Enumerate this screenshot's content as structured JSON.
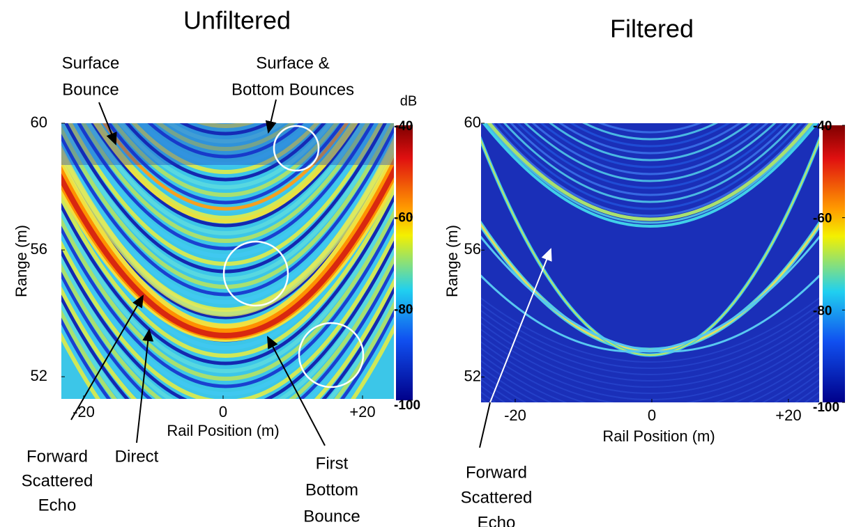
{
  "chart_data": [
    {
      "type": "heatmap",
      "title": "Unfiltered",
      "xlabel": "Rail Position (m)",
      "ylabel": "Range (m)",
      "xlim": [
        -23.2,
        24.5
      ],
      "xticks": [
        -20,
        0,
        {
          "value": 20,
          "label": "+20"
        }
      ],
      "ylim": [
        51.3,
        60
      ],
      "yticks": [
        60,
        56,
        52
      ],
      "colorbar": {
        "label": "dB",
        "lim": [
          -100,
          -40
        ],
        "ticks": [
          -40,
          -60,
          -80,
          -100
        ]
      },
      "annotations": [
        {
          "lines": [
            "Surface",
            "Bounce"
          ]
        },
        {
          "lines": [
            "Surface &",
            "Bottom Bounces"
          ]
        },
        {
          "lines": [
            "Forward",
            "Scattered",
            "Echo"
          ]
        },
        {
          "lines": [
            "Direct"
          ]
        },
        {
          "lines": [
            "First",
            "Bottom",
            "Bounce"
          ]
        }
      ]
    },
    {
      "type": "heatmap",
      "title": "Filtered",
      "xlabel": "Rail Position (m)",
      "ylabel": "Range (m)",
      "xlim": [
        -25,
        24.5
      ],
      "xticks": [
        -20,
        0,
        {
          "value": 20,
          "label": "+20"
        }
      ],
      "ylim": [
        51.2,
        60
      ],
      "yticks": [
        60,
        56,
        52
      ],
      "colorbar": {
        "lim": [
          -100,
          -40
        ],
        "ticks": [
          -40,
          -60,
          -80,
          -100
        ]
      },
      "annotations": [
        {
          "lines": [
            "Forward",
            "Scattered",
            "Echo"
          ]
        }
      ]
    }
  ]
}
